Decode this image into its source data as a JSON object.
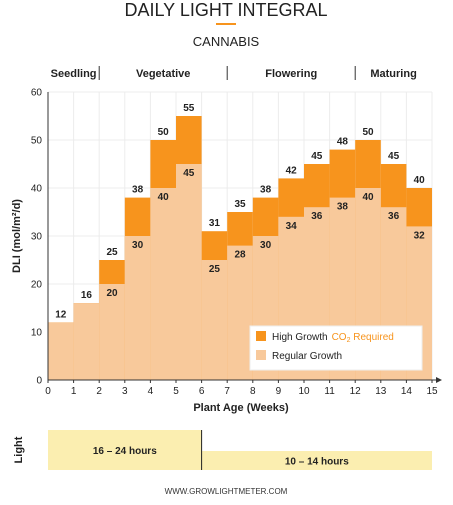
{
  "header": {
    "title": "DAILY LIGHT INTEGRAL",
    "subtitle": "CANNABIS"
  },
  "chart_data": {
    "type": "bar",
    "x": [
      0,
      1,
      2,
      3,
      4,
      5,
      6,
      7,
      8,
      9,
      10,
      11,
      12,
      13,
      14
    ],
    "xlim": [
      0,
      15
    ],
    "xticks": [
      "0",
      "1",
      "2",
      "3",
      "4",
      "5",
      "6",
      "7",
      "8",
      "9",
      "10",
      "11",
      "12",
      "13",
      "14",
      "15"
    ],
    "ylim": [
      0,
      60
    ],
    "yticks": [
      "0",
      "10",
      "20",
      "30",
      "40",
      "50",
      "60"
    ],
    "xlabel": "Plant Age (Weeks)",
    "ylabel": "DLI (mol/m²/d)",
    "grid": true,
    "legend_position": "bottom-right",
    "series": [
      {
        "name": "Regular Growth",
        "values": [
          12,
          16,
          20,
          30,
          40,
          45,
          25,
          28,
          30,
          34,
          36,
          38,
          40,
          36,
          32
        ],
        "labels": [
          "",
          "",
          "20",
          "30",
          "40",
          "45",
          "25",
          "28",
          "30",
          "34",
          "36",
          "38",
          "40",
          "36",
          "32"
        ],
        "color": "#f8c99b"
      },
      {
        "name": "High Growth",
        "values": [
          12,
          16,
          25,
          38,
          50,
          55,
          31,
          35,
          38,
          42,
          45,
          48,
          50,
          45,
          40
        ],
        "labels": [
          "12",
          "16",
          "25",
          "38",
          "50",
          "55",
          "31",
          "35",
          "38",
          "42",
          "45",
          "48",
          "50",
          "45",
          "40"
        ],
        "color": "#f7941d"
      }
    ],
    "legend_note": {
      "prefix": "CO",
      "subscript": "2",
      "suffix": " Required"
    },
    "stages": [
      {
        "label": "Seedling",
        "start": 0,
        "end": 2
      },
      {
        "label": "Vegetative",
        "start": 2,
        "end": 7
      },
      {
        "label": "Flowering",
        "start": 7,
        "end": 12
      },
      {
        "label": "Maturing",
        "start": 12,
        "end": 15
      }
    ],
    "light": {
      "label": "Light",
      "periods": [
        {
          "label": "16 – 24 hours",
          "start": 0,
          "end": 6
        },
        {
          "label": "10 – 14 hours",
          "start": 6,
          "end": 15
        }
      ]
    }
  },
  "colors": {
    "accent": "#f7941d",
    "regular": "#f8c99b",
    "light_band": "#fbeeb0",
    "text": "#222222"
  },
  "footer": {
    "website": "WWW.GROWLIGHTMETER.COM"
  }
}
